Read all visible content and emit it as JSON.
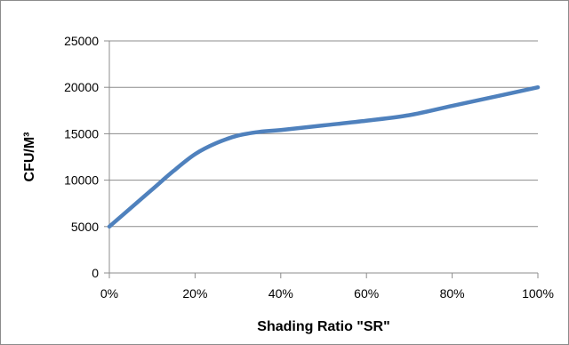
{
  "chart_data": {
    "type": "line",
    "title": "",
    "xlabel": "Shading Ratio \"SR\"",
    "ylabel": "CFU/M³",
    "x_tick_labels": [
      "0%",
      "20%",
      "40%",
      "60%",
      "80%",
      "100%"
    ],
    "y_tick_labels": [
      "0",
      "5000",
      "10000",
      "15000",
      "20000",
      "25000"
    ],
    "xlim": [
      0,
      100
    ],
    "ylim": [
      0,
      25000
    ],
    "grid": "horizontal",
    "legend": "none",
    "series_color": "#4f81bd",
    "series": [
      {
        "x": [
          0,
          5,
          10,
          15,
          20,
          25,
          30,
          35,
          40,
          50,
          60,
          70,
          80,
          90,
          100
        ],
        "values": [
          5000,
          7000,
          9000,
          11000,
          12800,
          14000,
          14800,
          15200,
          15400,
          15900,
          16400,
          17000,
          18000,
          19000,
          20000
        ]
      }
    ]
  }
}
